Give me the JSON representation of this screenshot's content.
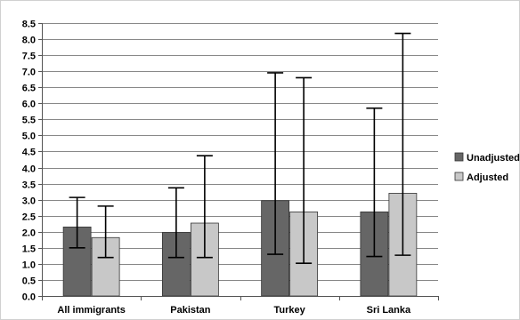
{
  "chart_data": {
    "type": "bar",
    "categories": [
      "All immigrants",
      "Pakistan",
      "Turkey",
      "Sri Lanka"
    ],
    "series": [
      {
        "name": "Unadjusted",
        "values": [
          2.15,
          1.98,
          2.97,
          2.62
        ],
        "error_low": [
          1.5,
          1.2,
          1.3,
          1.23
        ],
        "error_high": [
          3.07,
          3.37,
          6.95,
          5.85
        ],
        "color": "#666666"
      },
      {
        "name": "Adjusted",
        "values": [
          1.82,
          2.27,
          2.62,
          3.2
        ],
        "error_low": [
          1.2,
          1.2,
          1.02,
          1.27
        ],
        "error_high": [
          2.8,
          4.37,
          6.8,
          8.18
        ],
        "color": "#c8c8c8"
      }
    ],
    "yticks": [
      "0.0",
      "0.5",
      "1.0",
      "1.5",
      "2.0",
      "2.5",
      "3.0",
      "3.5",
      "4.0",
      "4.5",
      "5.0",
      "5.5",
      "6.0",
      "6.5",
      "7.0",
      "7.5",
      "8.0",
      "8.5"
    ],
    "ylim": [
      0,
      8.5
    ],
    "grid": true,
    "legend": "right",
    "title": "",
    "xlabel": "",
    "ylabel": ""
  }
}
